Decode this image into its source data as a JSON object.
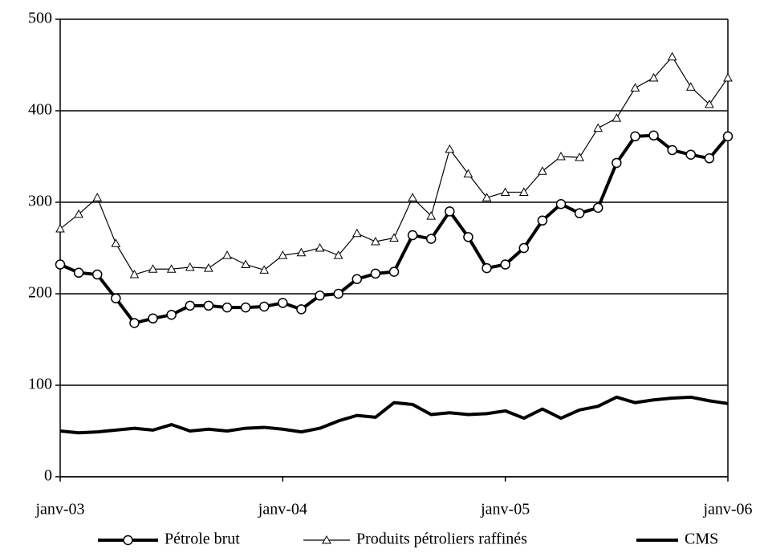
{
  "chart_data": {
    "type": "line",
    "categories": [
      "janv-03",
      null,
      null,
      null,
      null,
      null,
      null,
      null,
      null,
      null,
      null,
      null,
      "janv-04",
      null,
      null,
      null,
      null,
      null,
      null,
      null,
      null,
      null,
      null,
      null,
      "janv-05",
      null,
      null,
      null,
      null,
      null,
      null,
      null,
      null,
      null,
      null,
      null,
      "janv-06"
    ],
    "ylim": [
      0,
      500
    ],
    "yticks": [
      0,
      100,
      200,
      300,
      400,
      500
    ],
    "grid": true,
    "legend": "bottom",
    "series": [
      {
        "name": "Pétrole brut",
        "color": "#000000",
        "marker": "circle",
        "line_width": 4,
        "values": [
          232,
          223,
          221,
          195,
          168,
          173,
          177,
          187,
          187,
          185,
          185,
          186,
          190,
          183,
          198,
          200,
          216,
          222,
          224,
          264,
          260,
          290,
          262,
          228,
          232,
          250,
          280,
          298,
          288,
          294,
          343,
          372,
          373,
          357,
          352,
          348,
          372
        ]
      },
      {
        "name": "Produits pétroliers raffinés",
        "color": "#000000",
        "marker": "triangle",
        "line_width": 1.2,
        "values": [
          271,
          287,
          305,
          255,
          221,
          227,
          227,
          229,
          228,
          242,
          232,
          226,
          242,
          245,
          250,
          242,
          266,
          257,
          261,
          305,
          285,
          358,
          331,
          305,
          311,
          311,
          334,
          350,
          349,
          381,
          392,
          425,
          436,
          459,
          426,
          407,
          436
        ]
      },
      {
        "name": "CMS",
        "color": "#000000",
        "marker": "none",
        "line_width": 4,
        "values": [
          50,
          48,
          49,
          51,
          53,
          51,
          57,
          50,
          52,
          50,
          53,
          54,
          52,
          49,
          53,
          61,
          67,
          65,
          81,
          79,
          68,
          70,
          68,
          69,
          72,
          64,
          74,
          64,
          73,
          77,
          87,
          81,
          84,
          86,
          87,
          83,
          80
        ]
      }
    ]
  }
}
